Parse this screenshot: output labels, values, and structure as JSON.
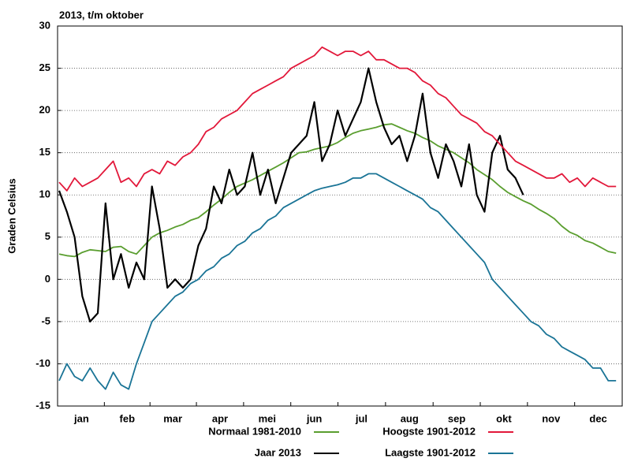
{
  "chart_data": {
    "type": "line",
    "title": "2013, t/m oktober",
    "y_label": "Graden Celsius",
    "xlim": [
      0,
      365
    ],
    "xticks": [
      {
        "value": 15.5,
        "label": "jan"
      },
      {
        "value": 45,
        "label": "feb"
      },
      {
        "value": 74.5,
        "label": "mar"
      },
      {
        "value": 105,
        "label": "apr"
      },
      {
        "value": 135.5,
        "label": "mei"
      },
      {
        "value": 166,
        "label": "jun"
      },
      {
        "value": 196.5,
        "label": "jul"
      },
      {
        "value": 227.5,
        "label": "aug"
      },
      {
        "value": 258,
        "label": "sep"
      },
      {
        "value": 288.5,
        "label": "okt"
      },
      {
        "value": 319,
        "label": "nov"
      },
      {
        "value": 349.5,
        "label": "dec"
      }
    ],
    "ylim": [
      -15,
      30
    ],
    "yticks": [
      -15,
      -10,
      -5,
      0,
      5,
      10,
      15,
      20,
      25,
      30
    ],
    "grid": true,
    "x": [
      1,
      6,
      11,
      16,
      21,
      26,
      31,
      36,
      41,
      46,
      51,
      56,
      61,
      66,
      71,
      76,
      81,
      86,
      91,
      96,
      101,
      106,
      111,
      116,
      121,
      126,
      131,
      136,
      141,
      146,
      151,
      156,
      161,
      166,
      171,
      176,
      181,
      186,
      191,
      196,
      201,
      206,
      211,
      216,
      221,
      226,
      231,
      236,
      241,
      246,
      251,
      256,
      261,
      266,
      271,
      276,
      281,
      286,
      291,
      296,
      301,
      306,
      311,
      316,
      321,
      326,
      331,
      336,
      341,
      346,
      351,
      356,
      361
    ],
    "series": [
      {
        "name": "Normaal 1981-2010",
        "color": "#5a9e2f",
        "values": [
          3,
          2.8,
          2.7,
          3.2,
          3.5,
          3.4,
          3.3,
          3.8,
          3.9,
          3.3,
          3.0,
          4.0,
          5.0,
          5.5,
          5.8,
          6.2,
          6.5,
          7.0,
          7.3,
          8.0,
          8.8,
          9.5,
          10.3,
          11.0,
          11.4,
          11.8,
          12.3,
          12.8,
          13.3,
          13.8,
          14.4,
          15.0,
          15.1,
          15.4,
          15.6,
          15.8,
          16.2,
          16.8,
          17.3,
          17.6,
          17.8,
          18.0,
          18.3,
          18.4,
          18.0,
          17.6,
          17.3,
          16.8,
          16.4,
          15.8,
          15.4,
          15.0,
          14.4,
          13.8,
          13.0,
          12.4,
          11.8,
          11.0,
          10.3,
          9.8,
          9.3,
          8.9,
          8.3,
          7.8,
          7.2,
          6.3,
          5.6,
          5.2,
          4.6,
          4.3,
          3.8,
          3.3,
          3.1
        ]
      },
      {
        "name": "Jaar 2013",
        "color": "#000000",
        "values": [
          10.5,
          8,
          5,
          -2,
          -5,
          -4,
          9,
          0,
          3,
          -1,
          2,
          0,
          11,
          6,
          -1,
          0,
          -1,
          0,
          4,
          6,
          11,
          9,
          13,
          10,
          11,
          15,
          10,
          13,
          9,
          12,
          15,
          16,
          17,
          21,
          14,
          16,
          20,
          17,
          19,
          21,
          25,
          21,
          18,
          16,
          17,
          14,
          17,
          22,
          15,
          12,
          16,
          14,
          11,
          16,
          10,
          8,
          15,
          17,
          13,
          12,
          10,
          null,
          null,
          null,
          null,
          null,
          null,
          null,
          null,
          null,
          null,
          null,
          null
        ]
      },
      {
        "name": "Hoogste 1901-2012",
        "color": "#e2183a",
        "values": [
          11.5,
          10.5,
          12,
          11,
          11.5,
          12,
          13,
          14,
          11.5,
          12,
          11,
          12.5,
          13,
          12.5,
          14,
          13.5,
          14.5,
          15,
          16,
          17.5,
          18,
          19,
          19.5,
          20,
          21,
          22,
          22.5,
          23,
          23.5,
          24,
          25,
          25.5,
          26,
          26.5,
          27.5,
          27,
          26.5,
          27,
          27,
          26.5,
          27,
          26,
          26,
          25.5,
          25,
          25,
          24.5,
          23.5,
          23,
          22,
          21.5,
          20.5,
          19.5,
          19,
          18.5,
          17.5,
          17,
          16,
          15,
          14,
          13.5,
          13,
          12.5,
          12,
          12,
          12.5,
          11.5,
          12,
          11,
          12,
          11.5,
          11,
          11
        ]
      },
      {
        "name": "Laagste 1901-2012",
        "color": "#1a7496",
        "values": [
          -12,
          -10,
          -11.5,
          -12,
          -10.5,
          -12,
          -13,
          -11,
          -12.5,
          -13,
          -10,
          -7.5,
          -5,
          -4,
          -3,
          -2,
          -1.5,
          -0.5,
          0,
          1,
          1.5,
          2.5,
          3,
          4,
          4.5,
          5.5,
          6,
          7,
          7.5,
          8.5,
          9,
          9.5,
          10,
          10.5,
          10.8,
          11,
          11.2,
          11.5,
          12,
          12,
          12.5,
          12.5,
          12,
          11.5,
          11,
          10.5,
          10,
          9.5,
          8.5,
          8,
          7,
          6,
          5,
          4,
          3,
          2,
          0,
          -1,
          -2,
          -3,
          -4,
          -5,
          -5.5,
          -6.5,
          -7,
          -8,
          -8.5,
          -9,
          -9.5,
          -10.5,
          -10.5,
          -12,
          -12
        ]
      }
    ]
  }
}
